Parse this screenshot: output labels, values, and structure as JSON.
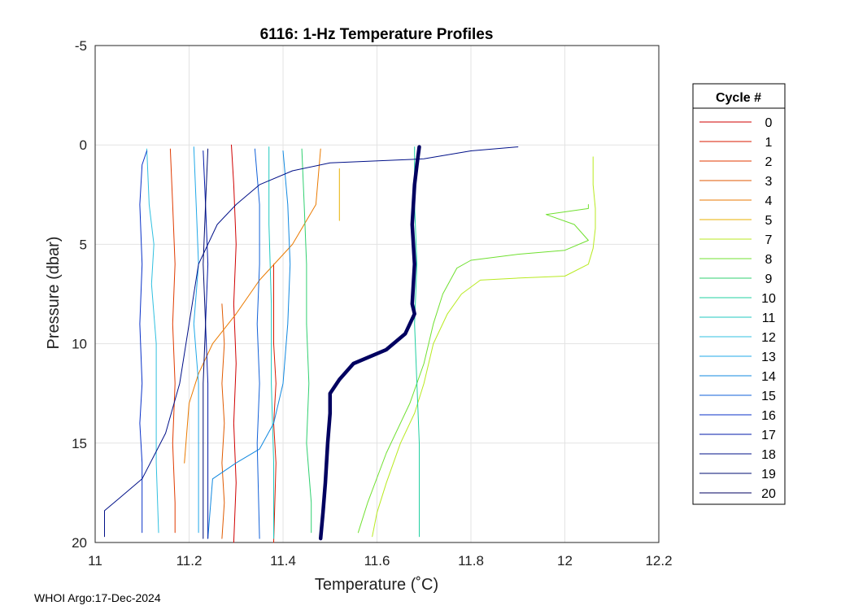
{
  "footer": "WHOI Argo:17-Dec-2024",
  "chart_data": {
    "type": "line",
    "title": "6116: 1-Hz Temperature Profiles",
    "xlabel": "Temperature (˚C)",
    "ylabel": "Pressure (dbar)",
    "xlim": [
      11,
      12.2
    ],
    "ylim": [
      -5,
      20
    ],
    "y_reversed": true,
    "xticks": [
      "11",
      "11.2",
      "11.4",
      "11.6",
      "11.8",
      "12",
      "12.2"
    ],
    "yticks": [
      "-5",
      "0",
      "5",
      "10",
      "15",
      "20"
    ],
    "grid": true,
    "legend": {
      "title": "Cycle #",
      "placement": "outside-right"
    },
    "series": [
      {
        "name": "0",
        "color": "#d00000",
        "width": 1,
        "x": [
          11.29,
          11.295,
          11.3,
          11.295,
          11.3,
          11.295,
          11.3,
          11.295
        ],
        "y": [
          0,
          2,
          5,
          8,
          11,
          14,
          17,
          20
        ]
      },
      {
        "name": "1",
        "color": "#d81a00",
        "width": 1,
        "x": [
          11.38,
          11.38,
          11.38,
          11.385,
          11.38,
          11.385,
          11.38
        ],
        "y": [
          6,
          8,
          10,
          12,
          14,
          16,
          20
        ]
      },
      {
        "name": "2",
        "color": "#e03a00",
        "width": 1,
        "x": [
          11.16,
          11.165,
          11.17,
          11.165,
          11.17,
          11.165,
          11.17,
          11.17
        ],
        "y": [
          0.2,
          3,
          6,
          9,
          12,
          15,
          18,
          19.5
        ]
      },
      {
        "name": "3",
        "color": "#e05a00",
        "width": 1,
        "x": [
          11.27,
          11.275,
          11.27,
          11.275,
          11.27,
          11.275,
          11.27
        ],
        "y": [
          8,
          10,
          12,
          14,
          16,
          18,
          19.8
        ]
      },
      {
        "name": "4",
        "color": "#ea7a00",
        "width": 1,
        "x": [
          11.48,
          11.47,
          11.42,
          11.35,
          11.3,
          11.25,
          11.22,
          11.2,
          11.19
        ],
        "y": [
          0.2,
          3,
          5,
          6.8,
          8.5,
          10,
          11.5,
          13,
          16
        ]
      },
      {
        "name": "5",
        "color": "#e8b000",
        "width": 1,
        "x": [
          11.52,
          11.52,
          11.52
        ],
        "y": [
          1.2,
          3,
          3.8
        ]
      },
      {
        "name": "7",
        "color": "#b8ea20",
        "width": 1,
        "x": [
          12.06,
          12.06,
          12.065,
          12.065,
          12.06,
          12.05,
          12.0,
          11.9,
          11.82,
          11.78,
          11.75,
          11.72,
          11.7,
          11.68,
          11.65,
          11.62,
          11.6,
          11.59
        ],
        "y": [
          0.6,
          2,
          3.2,
          4.2,
          5.2,
          6,
          6.6,
          6.7,
          6.8,
          7.5,
          8.5,
          10,
          12,
          13.5,
          15,
          17,
          18.5,
          19.7
        ]
      },
      {
        "name": "8",
        "color": "#70e030",
        "width": 1,
        "x": [
          12.05,
          12.05,
          11.96,
          12.02,
          12.05,
          12.0,
          11.9,
          11.8,
          11.77,
          11.74,
          11.72,
          11.7,
          11.67,
          11.62,
          11.58,
          11.56
        ],
        "y": [
          3,
          3.2,
          3.5,
          4,
          4.8,
          5.3,
          5.5,
          5.8,
          6.2,
          7.5,
          9,
          11,
          13,
          15.5,
          18,
          19.5
        ]
      },
      {
        "name": "9",
        "color": "#30d070",
        "width": 1,
        "x": [
          11.44,
          11.445,
          11.45,
          11.45,
          11.455,
          11.45,
          11.46,
          11.46
        ],
        "y": [
          0.2,
          3,
          6,
          9,
          12,
          15,
          18,
          19.5
        ]
      },
      {
        "name": "10",
        "color": "#20d0a0",
        "width": 1,
        "x": [
          11.68,
          11.68,
          11.685,
          11.68,
          11.685,
          11.69,
          11.69,
          11.69
        ],
        "y": [
          0.1,
          3,
          6,
          9,
          12,
          15,
          18,
          19.7
        ]
      },
      {
        "name": "11",
        "color": "#20c8c0",
        "width": 1,
        "x": [
          11.37,
          11.37,
          11.375,
          11.375,
          11.38,
          11.38
        ],
        "y": [
          0.1,
          4,
          8,
          12,
          16,
          19.8
        ]
      },
      {
        "name": "12",
        "color": "#30c0e0",
        "width": 1,
        "x": [
          11.11,
          11.115,
          11.125,
          11.12,
          11.13,
          11.13,
          11.13,
          11.135
        ],
        "y": [
          0.2,
          3,
          5,
          7,
          10,
          13,
          16,
          19.5
        ]
      },
      {
        "name": "13",
        "color": "#20a8e8",
        "width": 1,
        "x": [
          11.21,
          11.215,
          11.22,
          11.21,
          11.22,
          11.22,
          11.22
        ],
        "y": [
          0.1,
          3,
          6,
          9,
          12,
          15,
          19.5
        ]
      },
      {
        "name": "14",
        "color": "#1088e0",
        "width": 1,
        "x": [
          11.4,
          11.41,
          11.415,
          11.41,
          11.4,
          11.38,
          11.35,
          11.3,
          11.25,
          11.24
        ],
        "y": [
          0.3,
          3,
          6,
          9,
          12,
          14,
          15.3,
          16,
          16.8,
          19.8
        ]
      },
      {
        "name": "15",
        "color": "#1060d8",
        "width": 1,
        "x": [
          11.34,
          11.35,
          11.35,
          11.345,
          11.35,
          11.345,
          11.35
        ],
        "y": [
          0.2,
          3,
          6,
          9,
          12,
          15,
          19.8
        ]
      },
      {
        "name": "16",
        "color": "#0830c8",
        "width": 1,
        "x": [
          11.11,
          11.1,
          11.095,
          11.1,
          11.095,
          11.1,
          11.095,
          11.1,
          11.1,
          11.1
        ],
        "y": [
          0.3,
          1,
          3,
          6,
          9,
          12,
          14,
          16,
          18,
          19.5
        ]
      },
      {
        "name": "17",
        "color": "#0018a8",
        "width": 1,
        "x": [
          11.23,
          11.235,
          11.24,
          11.235,
          11.24,
          11.24,
          11.24
        ],
        "y": [
          0.3,
          3,
          6,
          9,
          12,
          15,
          19.8
        ]
      },
      {
        "name": "18",
        "color": "#001088",
        "width": 1,
        "x": [
          11.9,
          11.8,
          11.7,
          11.5,
          11.42,
          11.35,
          11.3,
          11.26,
          11.22,
          11.2,
          11.18,
          11.15,
          11.1,
          11.05,
          11.02,
          11.02,
          11.02
        ],
        "y": [
          0.1,
          0.3,
          0.7,
          0.9,
          1.3,
          2,
          3,
          4,
          6,
          9,
          12,
          14.5,
          16.8,
          17.8,
          18.4,
          19,
          19.7
        ]
      },
      {
        "name": "19",
        "color": "#000c70",
        "width": 1,
        "x": [
          11.24,
          11.235,
          11.23,
          11.235,
          11.23,
          11.23,
          11.23
        ],
        "y": [
          0.2,
          3,
          6,
          9,
          12,
          15,
          19.8
        ]
      },
      {
        "name": "20",
        "color": "#000060",
        "width": 4.5,
        "x": [
          11.69,
          11.685,
          11.68,
          11.675,
          11.68,
          11.675,
          11.68,
          11.66,
          11.62,
          11.55,
          11.52,
          11.5,
          11.5,
          11.495,
          11.49,
          11.485,
          11.48
        ],
        "y": [
          0.1,
          1,
          2,
          4,
          6,
          8,
          8.5,
          9.5,
          10.3,
          11,
          11.8,
          12.5,
          13.5,
          15,
          17,
          18.5,
          19.8
        ]
      }
    ]
  }
}
